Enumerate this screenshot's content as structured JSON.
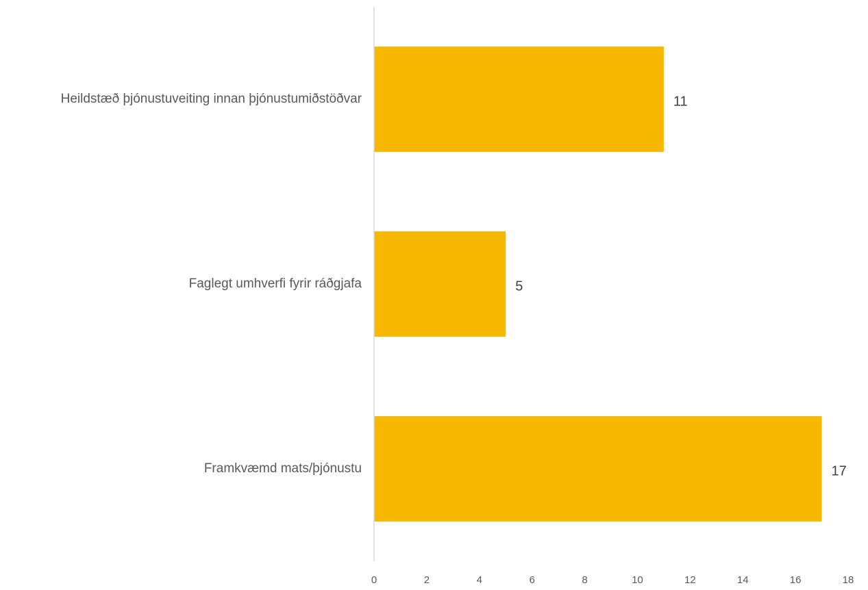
{
  "chart_data": {
    "type": "bar",
    "orientation": "horizontal",
    "categories": [
      "Heildstæð þjónustuveiting innan þjónustumiðstöðvar",
      "Faglegt umhverfi fyrir ráðgjafa",
      "Framkvæmd mats/þjónustu"
    ],
    "values": [
      11,
      5,
      17
    ],
    "data_labels": [
      "11",
      "5",
      "17"
    ],
    "title": "",
    "xlabel": "",
    "ylabel": "",
    "xlim": [
      0,
      18
    ],
    "x_ticks": [
      0,
      2,
      4,
      6,
      8,
      10,
      12,
      14,
      16,
      18
    ],
    "x_tick_labels": [
      "0",
      "2",
      "4",
      "6",
      "8",
      "10",
      "12",
      "14",
      "16",
      "18"
    ],
    "grid": false,
    "legend": "none",
    "bar_color": "#F9B800",
    "axis_color": "#D9D9D9"
  }
}
